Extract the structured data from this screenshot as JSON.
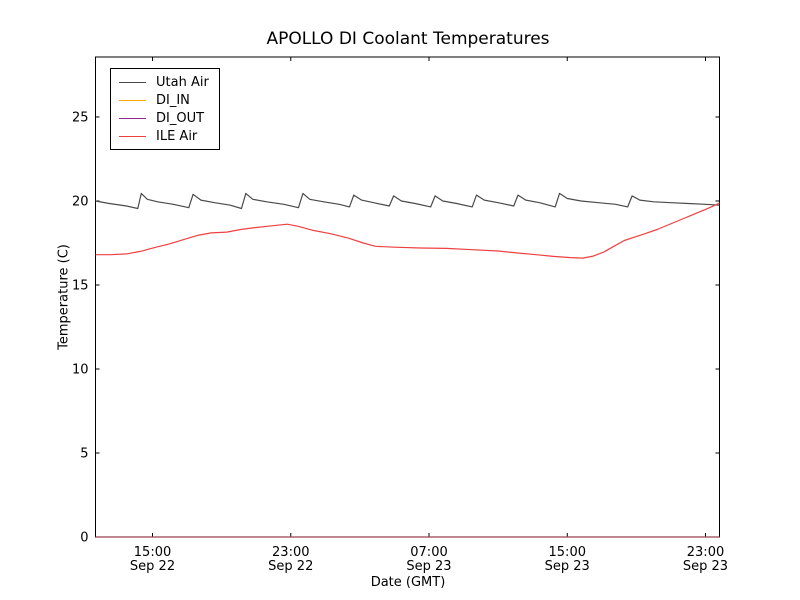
{
  "chart_data": {
    "type": "line",
    "title": "APOLLO DI Coolant Temperatures",
    "xlabel": "Date (GMT)",
    "ylabel": "Temperature (C)",
    "x_unit": "hours since Sep 22 00:00 GMT",
    "xlim_hours": [
      11.7,
      47.81
    ],
    "ylim": [
      0,
      28.57
    ],
    "grid": false,
    "legend_position": "upper left",
    "frame_color": "#000000",
    "bottom_spine_blend_color": "#5e3a46",
    "yticks": [
      {
        "v": 0,
        "label": "0"
      },
      {
        "v": 5,
        "label": "5"
      },
      {
        "v": 10,
        "label": "10"
      },
      {
        "v": 15,
        "label": "15"
      },
      {
        "v": 20,
        "label": "20"
      },
      {
        "v": 25,
        "label": "25"
      }
    ],
    "xticks": [
      {
        "t": 15,
        "time": "15:00",
        "date": "Sep 22"
      },
      {
        "t": 23,
        "time": "23:00",
        "date": "Sep 22"
      },
      {
        "t": 31,
        "time": "07:00",
        "date": "Sep 23"
      },
      {
        "t": 39,
        "time": "15:00",
        "date": "Sep 23"
      },
      {
        "t": 47,
        "time": "23:00",
        "date": "Sep 23"
      }
    ],
    "series": [
      {
        "name": "Utah Air",
        "color": "#4a4a4a",
        "opacity": 1,
        "points": [
          [
            11.7,
            20.0
          ],
          [
            12.5,
            19.85
          ],
          [
            13.5,
            19.7
          ],
          [
            14.15,
            19.55
          ],
          [
            14.35,
            20.45
          ],
          [
            14.7,
            20.1
          ],
          [
            15.3,
            19.95
          ],
          [
            16.2,
            19.8
          ],
          [
            17.1,
            19.6
          ],
          [
            17.35,
            20.4
          ],
          [
            17.8,
            20.05
          ],
          [
            18.6,
            19.9
          ],
          [
            19.5,
            19.75
          ],
          [
            20.15,
            19.55
          ],
          [
            20.4,
            20.45
          ],
          [
            20.8,
            20.1
          ],
          [
            21.6,
            19.95
          ],
          [
            22.6,
            19.8
          ],
          [
            23.45,
            19.6
          ],
          [
            23.7,
            20.45
          ],
          [
            24.1,
            20.1
          ],
          [
            24.9,
            19.95
          ],
          [
            25.8,
            19.8
          ],
          [
            26.4,
            19.65
          ],
          [
            26.65,
            20.35
          ],
          [
            27.1,
            20.05
          ],
          [
            27.8,
            19.9
          ],
          [
            28.7,
            19.7
          ],
          [
            28.95,
            20.3
          ],
          [
            29.4,
            20.0
          ],
          [
            30.2,
            19.85
          ],
          [
            31.1,
            19.65
          ],
          [
            31.35,
            20.3
          ],
          [
            31.8,
            20.0
          ],
          [
            32.6,
            19.85
          ],
          [
            33.5,
            19.65
          ],
          [
            33.75,
            20.35
          ],
          [
            34.2,
            20.05
          ],
          [
            35.0,
            19.9
          ],
          [
            35.9,
            19.7
          ],
          [
            36.15,
            20.35
          ],
          [
            36.6,
            20.05
          ],
          [
            37.4,
            19.9
          ],
          [
            38.3,
            19.65
          ],
          [
            38.55,
            20.45
          ],
          [
            39.0,
            20.15
          ],
          [
            39.8,
            20.0
          ],
          [
            40.8,
            19.9
          ],
          [
            41.8,
            19.8
          ],
          [
            42.5,
            19.65
          ],
          [
            42.75,
            20.3
          ],
          [
            43.2,
            20.05
          ],
          [
            44.0,
            19.95
          ],
          [
            45.0,
            19.9
          ],
          [
            46.0,
            19.85
          ],
          [
            47.0,
            19.8
          ],
          [
            47.81,
            19.75
          ]
        ]
      },
      {
        "name": "DI_IN",
        "color": "#ffa500",
        "opacity": 0.65,
        "points": [
          [
            11.7,
            0
          ],
          [
            47.81,
            0
          ]
        ]
      },
      {
        "name": "DI_OUT",
        "color": "#8a2e8a",
        "opacity": 0.65,
        "points": [
          [
            11.7,
            0
          ],
          [
            47.81,
            0
          ]
        ]
      },
      {
        "name": "ILE Air",
        "color": "#ee4040",
        "opacity": 1,
        "points": [
          [
            11.7,
            16.8
          ],
          [
            12.6,
            16.8
          ],
          [
            13.5,
            16.85
          ],
          [
            14.3,
            17.0
          ],
          [
            15.2,
            17.25
          ],
          [
            16.0,
            17.45
          ],
          [
            16.8,
            17.7
          ],
          [
            17.6,
            17.95
          ],
          [
            18.4,
            18.1
          ],
          [
            19.3,
            18.15
          ],
          [
            20.1,
            18.3
          ],
          [
            21.0,
            18.42
          ],
          [
            21.9,
            18.52
          ],
          [
            22.8,
            18.62
          ],
          [
            23.4,
            18.5
          ],
          [
            24.3,
            18.25
          ],
          [
            25.3,
            18.05
          ],
          [
            26.3,
            17.8
          ],
          [
            27.2,
            17.5
          ],
          [
            27.9,
            17.3
          ],
          [
            29.0,
            17.25
          ],
          [
            30.5,
            17.2
          ],
          [
            32.0,
            17.18
          ],
          [
            33.5,
            17.1
          ],
          [
            35.0,
            17.02
          ],
          [
            36.2,
            16.9
          ],
          [
            37.2,
            16.8
          ],
          [
            38.2,
            16.7
          ],
          [
            39.2,
            16.63
          ],
          [
            39.9,
            16.6
          ],
          [
            40.5,
            16.72
          ],
          [
            41.1,
            16.95
          ],
          [
            41.7,
            17.3
          ],
          [
            42.3,
            17.65
          ],
          [
            42.9,
            17.85
          ],
          [
            43.5,
            18.05
          ],
          [
            44.2,
            18.3
          ],
          [
            44.9,
            18.6
          ],
          [
            45.6,
            18.9
          ],
          [
            46.3,
            19.2
          ],
          [
            47.0,
            19.5
          ],
          [
            47.5,
            19.72
          ],
          [
            47.81,
            19.88
          ]
        ]
      }
    ],
    "legend": [
      {
        "label": "Utah Air"
      },
      {
        "label": "DI_IN"
      },
      {
        "label": "DI_OUT"
      },
      {
        "label": "ILE Air"
      }
    ]
  }
}
